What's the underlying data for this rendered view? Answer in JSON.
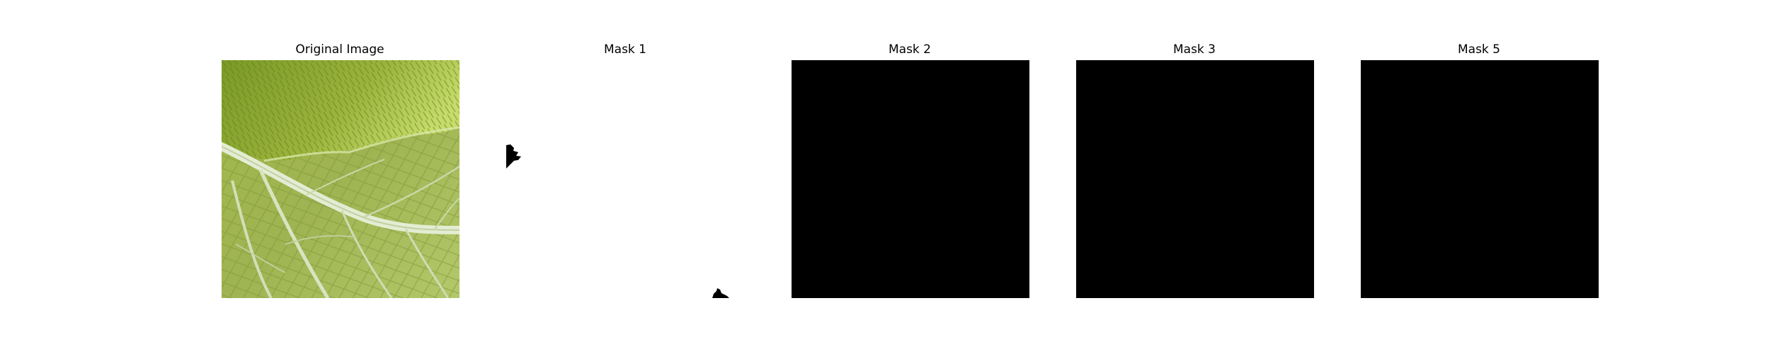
{
  "panels": [
    {
      "title": "Original Image",
      "kind": "photo",
      "icon": "leaf-photo"
    },
    {
      "title": "Mask 1",
      "kind": "mask",
      "fill": "#ffffff",
      "blob_color": "#000000"
    },
    {
      "title": "Mask 2",
      "kind": "mask",
      "fill": "#000000"
    },
    {
      "title": "Mask 3",
      "kind": "mask",
      "fill": "#000000"
    },
    {
      "title": "Mask 5",
      "kind": "mask",
      "fill": "#000000"
    }
  ],
  "colors": {
    "leaf_light": "#a9bd55",
    "leaf_dark": "#7f9a35",
    "vein": "#e2ead0",
    "mask_on": "#ffffff",
    "mask_off": "#000000"
  }
}
